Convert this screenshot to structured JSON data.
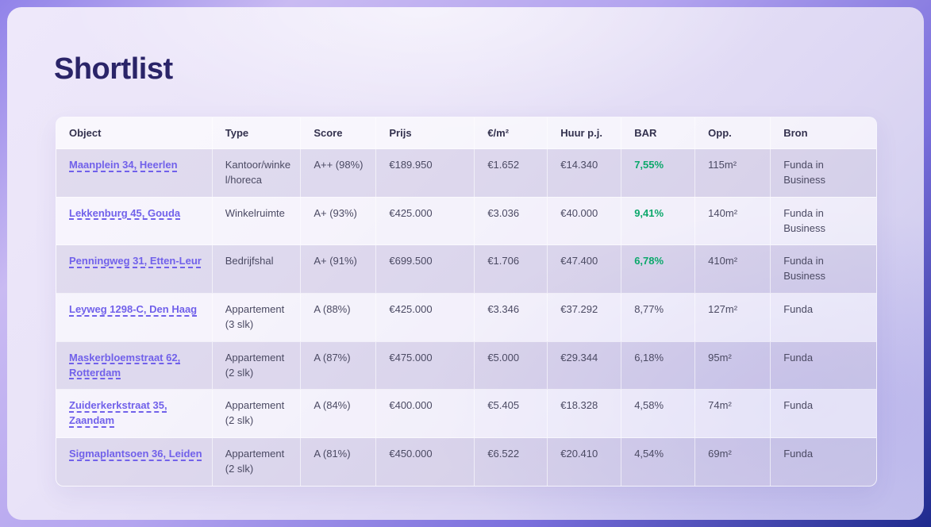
{
  "page": {
    "title": "Shortlist"
  },
  "colors": {
    "frame_gradient_top": "#9183E9",
    "frame_gradient_bottom": "#1F2B8E",
    "card_light": "#EBE5F8",
    "card_dark": "#C7C5EC",
    "title_text": "#2A2468",
    "header_text": "#33314E",
    "body_text": "#4B4A63",
    "link_purple": "#7161EA",
    "bar_positive_green": "#0CA86B"
  },
  "table": {
    "columns": [
      {
        "id": "object",
        "label": "Object"
      },
      {
        "id": "type",
        "label": "Type"
      },
      {
        "id": "score",
        "label": "Score"
      },
      {
        "id": "prijs",
        "label": "Prijs"
      },
      {
        "id": "eur_m2",
        "label": "€/m²"
      },
      {
        "id": "huur_pj",
        "label": "Huur p.j."
      },
      {
        "id": "bar",
        "label": "BAR"
      },
      {
        "id": "opp",
        "label": "Opp."
      },
      {
        "id": "bron",
        "label": "Bron"
      }
    ],
    "rows": [
      {
        "object": "Maanplein 34, Heerlen",
        "type": "Kantoor/winkel/horeca",
        "score": "A++ (98%)",
        "prijs": "€189.950",
        "eur_m2": "€1.652",
        "huur_pj": "€14.340",
        "bar": "7,55%",
        "bar_highlight": true,
        "opp": "115m²",
        "bron": "Funda in Business"
      },
      {
        "object": "Lekkenburg 45, Gouda",
        "type": "Winkelruimte",
        "score": "A+ (93%)",
        "prijs": "€425.000",
        "eur_m2": "€3.036",
        "huur_pj": "€40.000",
        "bar": "9,41%",
        "bar_highlight": true,
        "opp": "140m²",
        "bron": "Funda in Business"
      },
      {
        "object": "Penningweg 31, Etten-Leur",
        "type": "Bedrijfshal",
        "score": "A+ (91%)",
        "prijs": "€699.500",
        "eur_m2": "€1.706",
        "huur_pj": "€47.400",
        "bar": "6,78%",
        "bar_highlight": true,
        "opp": "410m²",
        "bron": "Funda in Business"
      },
      {
        "object": "Leyweg 1298-C, Den Haag",
        "type": "Appartement (3 slk)",
        "score": "A (88%)",
        "prijs": "€425.000",
        "eur_m2": "€3.346",
        "huur_pj": "€37.292",
        "bar": "8,77%",
        "bar_highlight": false,
        "opp": "127m²",
        "bron": "Funda"
      },
      {
        "object": "Maskerbloemstraat 62, Rotterdam",
        "type": "Appartement (2 slk)",
        "score": "A (87%)",
        "prijs": "€475.000",
        "eur_m2": "€5.000",
        "huur_pj": "€29.344",
        "bar": "6,18%",
        "bar_highlight": false,
        "opp": "95m²",
        "bron": "Funda"
      },
      {
        "object": "Zuiderkerkstraat 35, Zaandam",
        "type": "Appartement (2 slk)",
        "score": "A (84%)",
        "prijs": "€400.000",
        "eur_m2": "€5.405",
        "huur_pj": "€18.328",
        "bar": "4,58%",
        "bar_highlight": false,
        "opp": "74m²",
        "bron": "Funda"
      },
      {
        "object": "Sigmaplantsoen 36, Leiden",
        "type": "Appartement (2 slk)",
        "score": "A (81%)",
        "prijs": "€450.000",
        "eur_m2": "€6.522",
        "huur_pj": "€20.410",
        "bar": "4,54%",
        "bar_highlight": false,
        "opp": "69m²",
        "bron": "Funda"
      }
    ]
  }
}
